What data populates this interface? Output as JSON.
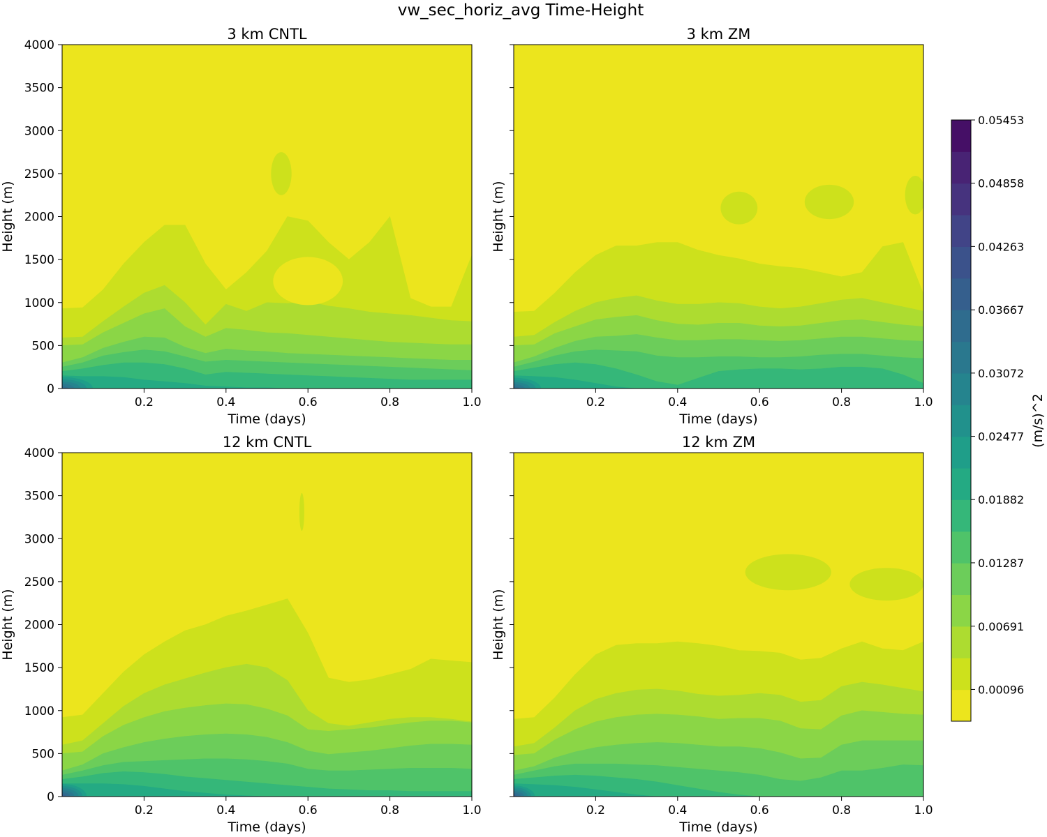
{
  "figure": {
    "title": "vw_sec_horiz_avg Time-Height",
    "colorbar": {
      "label": "(m/s)^2",
      "tick_labels": [
        "0.05453",
        "0.04858",
        "0.04263",
        "0.03667",
        "0.03072",
        "0.02477",
        "0.01882",
        "0.01287",
        "0.00691",
        "0.00096"
      ],
      "levels": [
        -0.00203,
        0.00096,
        0.00394,
        0.00691,
        0.00989,
        0.01287,
        0.01584,
        0.01882,
        0.0218,
        0.02477,
        0.02775,
        0.03072,
        0.0337,
        0.03667,
        0.03965,
        0.04263,
        0.0456,
        0.04858,
        0.05156,
        0.05453
      ],
      "colors": [
        "#ece51d",
        "#cde11c",
        "#addc30",
        "#8bd646",
        "#6ccd5a",
        "#4fc369",
        "#35b779",
        "#24aa83",
        "#1f9e89",
        "#21918c",
        "#25848e",
        "#2a788e",
        "#2f6c8e",
        "#355f8d",
        "#3b528b",
        "#414487",
        "#46337e",
        "#482374",
        "#450f66"
      ]
    }
  },
  "chart_data": [
    {
      "type": "heatmap",
      "title": "3 km CNTL",
      "xlabel": "Time (days)",
      "ylabel": "Height (m)",
      "xlim": [
        0,
        1.0
      ],
      "ylim": [
        0,
        4000
      ],
      "xticks": [
        "0.2",
        "0.4",
        "0.6",
        "0.8",
        "1.0"
      ],
      "yticks": [
        "0",
        "500",
        "1000",
        "1500",
        "2000",
        "2500",
        "3000",
        "3500",
        "4000"
      ],
      "x": [
        0,
        0.05,
        0.1,
        0.15,
        0.2,
        0.25,
        0.3,
        0.35,
        0.4,
        0.45,
        0.5,
        0.55,
        0.6,
        0.65,
        0.7,
        0.75,
        0.8,
        0.85,
        0.9,
        0.95,
        1.0
      ],
      "contour_tops_m": [
        {
          "level_index": 1,
          "values": [
            930,
            940,
            1150,
            1450,
            1700,
            1900,
            1900,
            1450,
            1150,
            1350,
            1600,
            2000,
            1950,
            1700,
            1500,
            1700,
            2000,
            1050,
            950,
            950,
            1550
          ]
        },
        {
          "level_index": 2,
          "values": [
            590,
            600,
            780,
            950,
            1110,
            1200,
            1000,
            740,
            980,
            900,
            1000,
            990,
            1010,
            960,
            930,
            890,
            870,
            850,
            820,
            790,
            780
          ]
        },
        {
          "level_index": 3,
          "values": [
            500,
            510,
            650,
            760,
            870,
            930,
            720,
            600,
            700,
            680,
            650,
            640,
            620,
            600,
            580,
            560,
            540,
            530,
            520,
            510,
            510
          ]
        },
        {
          "level_index": 4,
          "values": [
            300,
            360,
            470,
            540,
            600,
            590,
            480,
            410,
            460,
            440,
            430,
            410,
            400,
            390,
            380,
            370,
            360,
            350,
            340,
            330,
            330
          ]
        },
        {
          "level_index": 5,
          "values": [
            250,
            300,
            380,
            420,
            450,
            430,
            370,
            310,
            330,
            320,
            310,
            300,
            290,
            280,
            270,
            260,
            250,
            240,
            230,
            220,
            210
          ]
        },
        {
          "level_index": 6,
          "values": [
            200,
            230,
            270,
            300,
            300,
            280,
            230,
            160,
            190,
            180,
            170,
            160,
            150,
            140,
            130,
            120,
            110,
            100,
            100,
            100,
            100
          ]
        },
        {
          "level_index": 7,
          "values": [
            150,
            140,
            140,
            130,
            100,
            80,
            60,
            30,
            20,
            10,
            10,
            0,
            0,
            0,
            0,
            0,
            0,
            0,
            0,
            0,
            0
          ]
        }
      ],
      "corner_max": {
        "value_index": 12,
        "depth_days": 0.09,
        "depth_m": 160
      },
      "blobs": [
        {
          "level_index": 1,
          "x_center": 0.535,
          "y_center": 2500,
          "x_width": 0.05,
          "y_height": 500
        },
        {
          "level_index": 0,
          "x_center": 0.6,
          "y_center": 1250,
          "x_width": 0.17,
          "y_height": 560
        }
      ]
    },
    {
      "type": "heatmap",
      "title": "3 km ZM",
      "xlabel": "Time (days)",
      "ylabel": "Height (m)",
      "xlim": [
        0,
        1.0
      ],
      "ylim": [
        0,
        4000
      ],
      "xticks": [
        "0.2",
        "0.4",
        "0.6",
        "0.8",
        "1.0"
      ],
      "yticks": [
        "0",
        "500",
        "1000",
        "1500",
        "2000",
        "2500",
        "3000",
        "3500",
        "4000"
      ],
      "x": [
        0,
        0.05,
        0.1,
        0.15,
        0.2,
        0.25,
        0.3,
        0.35,
        0.4,
        0.45,
        0.5,
        0.55,
        0.6,
        0.65,
        0.7,
        0.75,
        0.8,
        0.85,
        0.9,
        0.95,
        1.0
      ],
      "contour_tops_m": [
        {
          "level_index": 1,
          "values": [
            890,
            900,
            1110,
            1350,
            1550,
            1660,
            1660,
            1700,
            1700,
            1610,
            1550,
            1510,
            1450,
            1420,
            1400,
            1350,
            1300,
            1350,
            1650,
            1700,
            1100
          ]
        },
        {
          "level_index": 2,
          "values": [
            600,
            620,
            770,
            900,
            1000,
            1050,
            1080,
            1020,
            980,
            980,
            1000,
            990,
            950,
            930,
            950,
            990,
            1030,
            1050,
            1000,
            950,
            900
          ]
        },
        {
          "level_index": 3,
          "values": [
            500,
            510,
            640,
            720,
            800,
            830,
            850,
            790,
            750,
            740,
            760,
            760,
            730,
            720,
            730,
            760,
            790,
            800,
            770,
            740,
            720
          ]
        },
        {
          "level_index": 4,
          "values": [
            300,
            370,
            470,
            550,
            600,
            610,
            630,
            590,
            560,
            560,
            570,
            570,
            560,
            550,
            560,
            580,
            600,
            600,
            580,
            560,
            550
          ]
        },
        {
          "level_index": 5,
          "values": [
            250,
            310,
            380,
            430,
            450,
            440,
            430,
            380,
            360,
            360,
            370,
            370,
            360,
            360,
            370,
            390,
            400,
            400,
            380,
            360,
            350
          ]
        },
        {
          "level_index": 6,
          "values": [
            200,
            240,
            280,
            300,
            280,
            230,
            160,
            80,
            40,
            120,
            200,
            220,
            230,
            230,
            220,
            230,
            250,
            250,
            230,
            160,
            60
          ]
        },
        {
          "level_index": 7,
          "values": [
            150,
            140,
            130,
            100,
            60,
            20,
            0,
            0,
            0,
            0,
            0,
            0,
            0,
            0,
            0,
            0,
            0,
            0,
            0,
            0,
            0
          ]
        }
      ],
      "corner_max": {
        "value_index": 12,
        "depth_days": 0.08,
        "depth_m": 150
      },
      "blobs": [
        {
          "level_index": 1,
          "x_center": 0.55,
          "y_center": 2100,
          "x_width": 0.09,
          "y_height": 380
        },
        {
          "level_index": 1,
          "x_center": 0.77,
          "y_center": 2170,
          "x_width": 0.12,
          "y_height": 400
        },
        {
          "level_index": 1,
          "x_center": 0.98,
          "y_center": 2250,
          "x_width": 0.05,
          "y_height": 450
        }
      ]
    },
    {
      "type": "heatmap",
      "title": "12 km CNTL",
      "xlabel": "Time (days)",
      "ylabel": "Height (m)",
      "xlim": [
        0,
        1.0
      ],
      "ylim": [
        0,
        4000
      ],
      "xticks": [
        "0.2",
        "0.4",
        "0.6",
        "0.8",
        "1.0"
      ],
      "yticks": [
        "0",
        "500",
        "1000",
        "1500",
        "2000",
        "2500",
        "3000",
        "3500",
        "4000"
      ],
      "x": [
        0,
        0.05,
        0.1,
        0.15,
        0.2,
        0.25,
        0.3,
        0.35,
        0.4,
        0.45,
        0.5,
        0.55,
        0.6,
        0.65,
        0.7,
        0.75,
        0.8,
        0.85,
        0.9,
        0.95,
        1.0
      ],
      "contour_tops_m": [
        {
          "level_index": 1,
          "values": [
            920,
            950,
            1200,
            1450,
            1650,
            1800,
            1930,
            2000,
            2100,
            2160,
            2230,
            2300,
            1900,
            1380,
            1330,
            1360,
            1420,
            1480,
            1600,
            1580,
            1560
          ]
        },
        {
          "level_index": 2,
          "values": [
            600,
            650,
            850,
            1050,
            1200,
            1300,
            1370,
            1440,
            1500,
            1540,
            1500,
            1350,
            1000,
            850,
            820,
            860,
            900,
            920,
            920,
            900,
            870
          ]
        },
        {
          "level_index": 3,
          "values": [
            500,
            520,
            700,
            830,
            920,
            990,
            1030,
            1060,
            1080,
            1070,
            1020,
            940,
            780,
            760,
            780,
            800,
            830,
            860,
            880,
            880,
            860
          ]
        },
        {
          "level_index": 4,
          "values": [
            300,
            370,
            500,
            570,
            630,
            670,
            700,
            720,
            730,
            720,
            690,
            630,
            530,
            490,
            510,
            530,
            560,
            590,
            610,
            610,
            600
          ]
        },
        {
          "level_index": 5,
          "values": [
            250,
            300,
            360,
            400,
            410,
            420,
            430,
            440,
            440,
            430,
            410,
            380,
            320,
            300,
            300,
            310,
            320,
            330,
            330,
            330,
            320
          ]
        },
        {
          "level_index": 6,
          "values": [
            200,
            230,
            270,
            290,
            280,
            260,
            230,
            210,
            190,
            170,
            150,
            130,
            110,
            90,
            80,
            70,
            70,
            60,
            60,
            60,
            60
          ]
        },
        {
          "level_index": 7,
          "values": [
            150,
            150,
            150,
            140,
            120,
            90,
            60,
            40,
            20,
            10,
            0,
            0,
            0,
            0,
            0,
            0,
            0,
            0,
            0,
            0,
            0
          ]
        }
      ],
      "corner_max": {
        "value_index": 13,
        "depth_days": 0.07,
        "depth_m": 170
      },
      "blobs": [
        {
          "level_index": 1,
          "x_center": 0.585,
          "y_center": 3310,
          "x_width": 0.012,
          "y_height": 440
        }
      ]
    },
    {
      "type": "heatmap",
      "title": "12 km ZM",
      "xlabel": "Time (days)",
      "ylabel": "Height (m)",
      "xlim": [
        0,
        1.0
      ],
      "ylim": [
        0,
        4000
      ],
      "xticks": [
        "0.2",
        "0.4",
        "0.6",
        "0.8",
        "1.0"
      ],
      "yticks": [
        "0",
        "500",
        "1000",
        "1500",
        "2000",
        "2500",
        "3000",
        "3500",
        "4000"
      ],
      "x": [
        0,
        0.05,
        0.1,
        0.15,
        0.2,
        0.25,
        0.3,
        0.35,
        0.4,
        0.45,
        0.5,
        0.55,
        0.6,
        0.65,
        0.7,
        0.75,
        0.8,
        0.85,
        0.9,
        0.95,
        1.0
      ],
      "contour_tops_m": [
        {
          "level_index": 1,
          "values": [
            900,
            920,
            1150,
            1420,
            1650,
            1760,
            1780,
            1780,
            1800,
            1780,
            1750,
            1700,
            1690,
            1670,
            1590,
            1610,
            1720,
            1800,
            1720,
            1700,
            1800
          ]
        },
        {
          "level_index": 2,
          "values": [
            580,
            620,
            800,
            1000,
            1130,
            1200,
            1240,
            1250,
            1230,
            1190,
            1170,
            1180,
            1200,
            1180,
            1100,
            1120,
            1280,
            1330,
            1300,
            1260,
            1220
          ]
        },
        {
          "level_index": 3,
          "values": [
            480,
            500,
            660,
            780,
            870,
            920,
            950,
            960,
            950,
            930,
            900,
            910,
            910,
            880,
            790,
            780,
            940,
            1000,
            980,
            960,
            950
          ]
        },
        {
          "level_index": 4,
          "values": [
            300,
            350,
            450,
            520,
            570,
            600,
            620,
            630,
            620,
            600,
            580,
            580,
            560,
            510,
            440,
            450,
            600,
            650,
            650,
            650,
            650
          ]
        },
        {
          "level_index": 5,
          "values": [
            250,
            300,
            350,
            380,
            380,
            380,
            370,
            360,
            340,
            320,
            300,
            280,
            250,
            200,
            180,
            220,
            300,
            300,
            330,
            370,
            360
          ]
        },
        {
          "level_index": 6,
          "values": [
            200,
            220,
            240,
            250,
            240,
            220,
            200,
            170,
            130,
            90,
            50,
            20,
            0,
            0,
            0,
            0,
            0,
            0,
            0,
            0,
            0
          ]
        },
        {
          "level_index": 7,
          "values": [
            150,
            140,
            130,
            110,
            80,
            50,
            20,
            0,
            0,
            0,
            0,
            0,
            0,
            0,
            0,
            0,
            0,
            0,
            0,
            0,
            0
          ]
        }
      ],
      "corner_max": {
        "value_index": 13,
        "depth_days": 0.06,
        "depth_m": 150
      },
      "blobs": [
        {
          "level_index": 1,
          "x_center": 0.67,
          "y_center": 2610,
          "x_width": 0.21,
          "y_height": 420
        },
        {
          "level_index": 1,
          "x_center": 0.91,
          "y_center": 2470,
          "x_width": 0.18,
          "y_height": 380
        }
      ]
    }
  ]
}
